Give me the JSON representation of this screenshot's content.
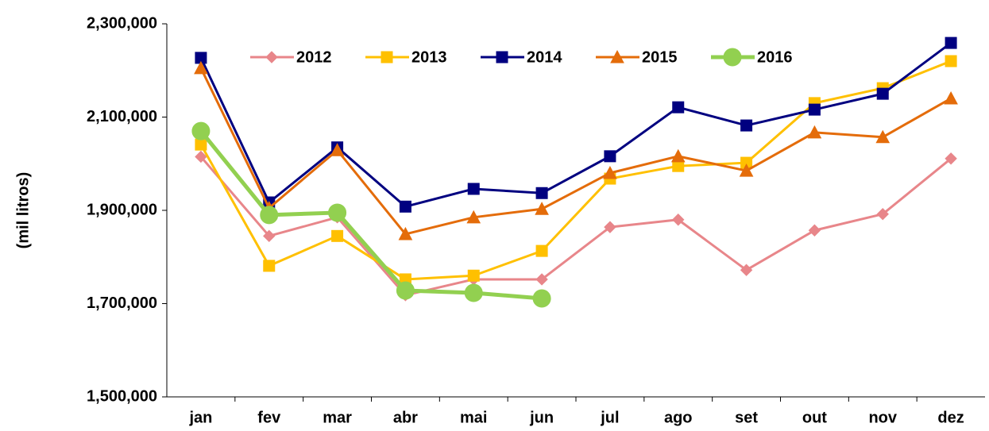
{
  "chart_data": {
    "type": "line",
    "y_label": "(mil litros)",
    "categories": [
      "jan",
      "fev",
      "mar",
      "abr",
      "mai",
      "jun",
      "jul",
      "ago",
      "set",
      "out",
      "nov",
      "dez"
    ],
    "ylim": [
      1500000,
      2300000
    ],
    "yticks": [
      {
        "value": 1500000,
        "label": "1,500,000"
      },
      {
        "value": 1700000,
        "label": "1,700,000"
      },
      {
        "value": 1900000,
        "label": "1,900,000"
      },
      {
        "value": 2100000,
        "label": "2,100,000"
      },
      {
        "value": 2300000,
        "label": "2,300,000"
      }
    ],
    "grid": false,
    "legend": "top",
    "series": [
      {
        "name": "2012",
        "color": "#e8868a",
        "marker": "diamond",
        "values": [
          2015000,
          1845000,
          1885000,
          1718000,
          1752000,
          1752000,
          1864000,
          1880000,
          1772000,
          1857000,
          1892000,
          2011000
        ]
      },
      {
        "name": "2013",
        "color": "#ffc000",
        "marker": "square",
        "values": [
          2041000,
          1781000,
          1845000,
          1752000,
          1760000,
          1813000,
          1968000,
          1995000,
          2002000,
          2130000,
          2162000,
          2220000
        ]
      },
      {
        "name": "2014",
        "color": "#000080",
        "marker": "square",
        "values": [
          2227000,
          1917000,
          2035000,
          1908000,
          1946000,
          1937000,
          2016000,
          2121000,
          2082000,
          2116000,
          2150000,
          2259000
        ]
      },
      {
        "name": "2015",
        "color": "#e46c0a",
        "marker": "triangle",
        "values": [
          2205000,
          1905000,
          2029000,
          1849000,
          1885000,
          1903000,
          1980000,
          2016000,
          1985000,
          2067000,
          2057000,
          2140000
        ]
      },
      {
        "name": "2016",
        "color": "#92d050",
        "marker": "circle",
        "values": [
          2070000,
          1890000,
          1895000,
          1728000,
          1723000,
          1711000,
          null,
          null,
          null,
          null,
          null,
          null
        ]
      }
    ]
  }
}
